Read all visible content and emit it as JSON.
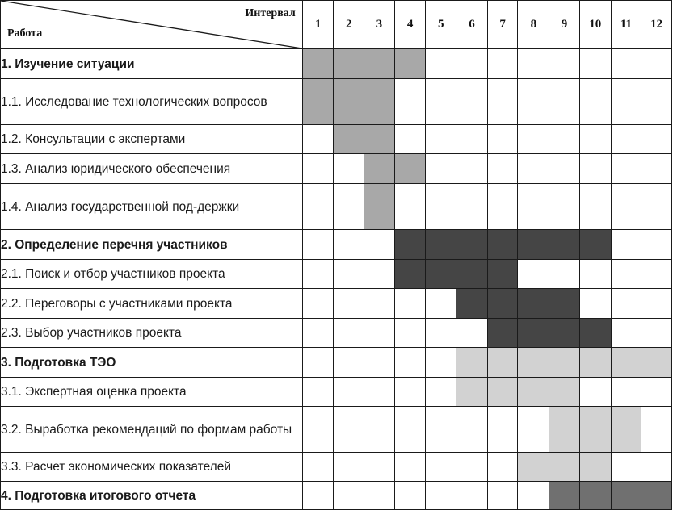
{
  "header": {
    "interval_label": "Интервал",
    "work_label": "Работа",
    "intervals": [
      "1",
      "2",
      "3",
      "4",
      "5",
      "6",
      "7",
      "8",
      "9",
      "10",
      "11",
      "12"
    ]
  },
  "colors": {
    "phase1": "#a8a8a8",
    "phase2": "#454545",
    "phase3": "#d2d2d2",
    "phase4": "#707070"
  },
  "rows": [
    {
      "label": "1. Изучение ситуации",
      "bold": true,
      "color": "phase1",
      "start": 1,
      "end": 4
    },
    {
      "label": "1.1. Исследование технологических вопросов",
      "bold": false,
      "color": "phase1",
      "start": 1,
      "end": 3
    },
    {
      "label": "1.2. Консультации с экспертами",
      "bold": false,
      "color": "phase1",
      "start": 2,
      "end": 3
    },
    {
      "label": "1.3. Анализ юридического обеспечения",
      "bold": false,
      "color": "phase1",
      "start": 3,
      "end": 4
    },
    {
      "label": "1.4. Анализ государственной под-держки",
      "bold": false,
      "color": "phase1",
      "start": 3,
      "end": 3
    },
    {
      "label": "2. Определение перечня участников",
      "bold": true,
      "color": "phase2",
      "start": 4,
      "end": 10
    },
    {
      "label": "2.1. Поиск и отбор участников проекта",
      "bold": false,
      "color": "phase2",
      "start": 4,
      "end": 7
    },
    {
      "label": "2.2. Переговоры с участниками проекта",
      "bold": false,
      "color": "phase2",
      "start": 6,
      "end": 9
    },
    {
      "label": "2.3. Выбор участников проекта",
      "bold": false,
      "color": "phase2",
      "start": 7,
      "end": 10
    },
    {
      "label": "3. Подготовка ТЭО",
      "bold": true,
      "color": "phase3",
      "start": 6,
      "end": 12
    },
    {
      "label": "3.1. Экспертная оценка проекта",
      "bold": false,
      "color": "phase3",
      "start": 6,
      "end": 9
    },
    {
      "label": "3.2. Выработка рекомендаций по формам работы",
      "bold": false,
      "color": "phase3",
      "start": 9,
      "end": 11
    },
    {
      "label": "3.3. Расчет экономических показателей",
      "bold": false,
      "color": "phase3",
      "start": 8,
      "end": 10
    },
    {
      "label": "4. Подготовка итогового отчета",
      "bold": true,
      "color": "phase4",
      "start": 9,
      "end": 12
    }
  ]
}
